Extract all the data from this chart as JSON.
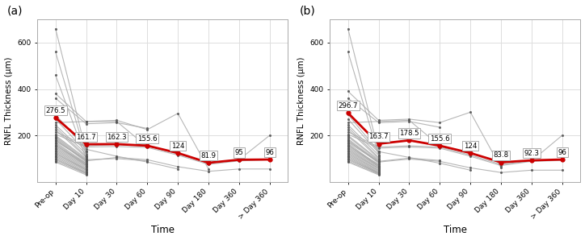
{
  "panel_a": {
    "label": "(a)",
    "mean_values": [
      276.5,
      161.7,
      162.3,
      155.6,
      124,
      81.9,
      95,
      96
    ],
    "mean_color": "#cc0000",
    "individual_color": "#aaaaaa",
    "dot_color": "#555555"
  },
  "panel_b": {
    "label": "(b)",
    "mean_values": [
      296.7,
      163.7,
      178.5,
      155.6,
      124,
      83.8,
      92.3,
      96
    ],
    "mean_color": "#cc0000",
    "individual_color": "#aaaaaa",
    "dot_color": "#555555"
  },
  "x_labels": [
    "Pre-op",
    "Day 10",
    "Day 30",
    "Day 60",
    "Day 90",
    "Day 180",
    "Day 360",
    "> Day 360"
  ],
  "ylabel": "RNFL Thickness (μm)",
  "xlabel": "Time",
  "ylim": [
    0,
    700
  ],
  "yticks": [
    200,
    400,
    600
  ],
  "grid_color": "#dddddd",
  "plot_bg": "#ffffff",
  "fig_bg": "#ffffff",
  "individual_lines_a": [
    [
      660,
      130
    ],
    [
      560,
      115
    ],
    [
      460,
      100
    ],
    [
      380,
      260,
      265,
      225,
      295,
      55
    ],
    [
      360,
      250,
      255,
      230
    ],
    [
      290,
      140,
      110,
      85,
      55
    ],
    [
      270,
      130
    ],
    [
      255,
      260,
      260,
      150
    ],
    [
      245,
      120
    ],
    [
      235,
      110
    ],
    [
      225,
      105
    ],
    [
      215,
      155,
      160,
      155,
      120,
      80,
      95,
      200
    ],
    [
      205,
      150,
      152,
      148,
      115,
      75,
      90,
      95
    ],
    [
      200,
      100
    ],
    [
      195,
      95
    ],
    [
      190,
      90
    ],
    [
      185,
      85
    ],
    [
      180,
      90,
      105,
      95,
      65,
      45,
      55,
      55
    ],
    [
      175,
      95,
      100,
      90
    ],
    [
      170,
      80
    ],
    [
      165,
      75
    ],
    [
      160,
      70
    ],
    [
      155,
      80
    ],
    [
      150,
      75
    ],
    [
      145,
      70
    ],
    [
      140,
      65
    ],
    [
      135,
      60
    ],
    [
      130,
      55
    ],
    [
      125,
      50
    ],
    [
      120,
      55
    ],
    [
      115,
      50
    ],
    [
      110,
      45
    ],
    [
      105,
      40
    ],
    [
      100,
      35
    ],
    [
      95,
      40
    ],
    [
      90,
      35
    ],
    [
      85,
      30
    ]
  ],
  "individual_lines_b": [
    [
      660,
      130
    ],
    [
      560,
      115
    ],
    [
      390,
      265,
      270,
      255,
      300,
      60
    ],
    [
      360,
      255,
      260,
      235
    ],
    [
      290,
      130,
      105,
      80,
      50
    ],
    [
      270,
      125
    ],
    [
      255,
      260,
      265,
      155
    ],
    [
      245,
      115
    ],
    [
      235,
      105
    ],
    [
      225,
      100
    ],
    [
      215,
      150,
      155,
      150,
      115,
      75,
      90,
      200
    ],
    [
      205,
      145,
      150,
      145,
      110,
      70,
      88,
      92
    ],
    [
      200,
      95
    ],
    [
      195,
      90
    ],
    [
      185,
      85
    ],
    [
      180,
      80
    ],
    [
      175,
      88,
      102,
      92
    ],
    [
      170,
      85,
      98,
      88,
      60,
      40,
      50,
      50
    ],
    [
      165,
      70
    ],
    [
      160,
      65
    ],
    [
      155,
      75
    ],
    [
      150,
      70
    ],
    [
      145,
      65
    ],
    [
      140,
      60
    ],
    [
      135,
      58
    ],
    [
      130,
      55
    ],
    [
      125,
      50
    ],
    [
      120,
      48
    ],
    [
      115,
      44
    ],
    [
      110,
      40
    ],
    [
      105,
      38
    ],
    [
      100,
      35
    ],
    [
      95,
      38
    ],
    [
      90,
      33
    ],
    [
      85,
      30
    ]
  ]
}
